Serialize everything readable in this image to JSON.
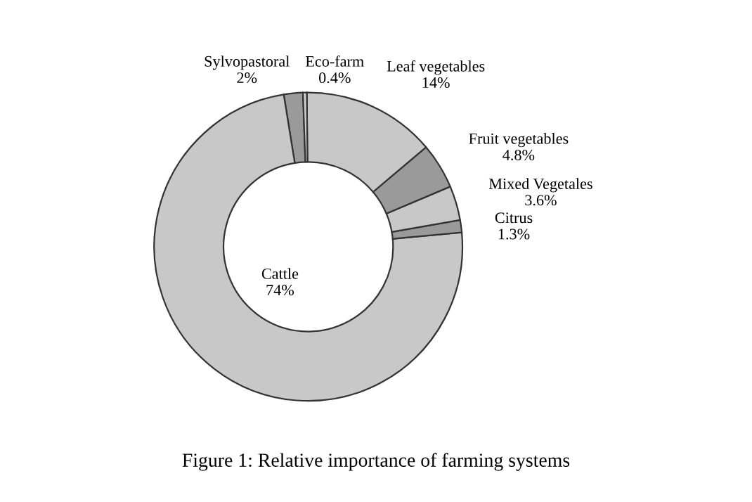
{
  "chart_data": {
    "type": "donut",
    "title": "Figure 1: Relative importance of farming systems",
    "categories": [
      "Sylvopastoral",
      "Cattle",
      "Citrus",
      "Mixed Vegetales",
      "Fruit vegetables",
      "Leaf vegetables",
      "Eco-farm"
    ],
    "values": [
      2,
      74,
      1.3,
      3.6,
      4.8,
      14,
      0.4
    ],
    "value_labels": [
      "2%",
      "74%",
      "1.3%",
      "3.6%",
      "4.8%",
      "14%",
      "0.4%"
    ],
    "colors": [
      "#9a9a9a",
      "#c8c8c8",
      "#9a9a9a",
      "#c8c8c8",
      "#9a9a9a",
      "#c8c8c8",
      "#d0d0d0"
    ],
    "legend": false
  }
}
